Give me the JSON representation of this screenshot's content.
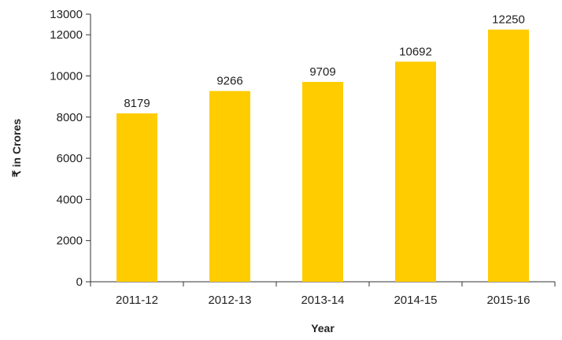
{
  "chart_data": {
    "type": "bar",
    "categories": [
      "2011-12",
      "2012-13",
      "2013-14",
      "2014-15",
      "2015-16"
    ],
    "values": [
      8179,
      9266,
      9709,
      10692,
      12250
    ],
    "data_labels": [
      "8179",
      "9266",
      "9709",
      "10692",
      "12250"
    ],
    "xlabel": "Year",
    "ylabel": "₹ in Crores",
    "ylim": [
      0,
      13000
    ],
    "yticks": [
      0,
      2000,
      4000,
      6000,
      8000,
      10000,
      12000,
      13000
    ],
    "ytick_labels": [
      "0",
      "2000",
      "4000",
      "6000",
      "8000",
      "10000",
      "12000",
      "13000"
    ],
    "grid": false,
    "legend": "none",
    "bar_color": "#FFCC00",
    "axis_color": "#333333"
  }
}
